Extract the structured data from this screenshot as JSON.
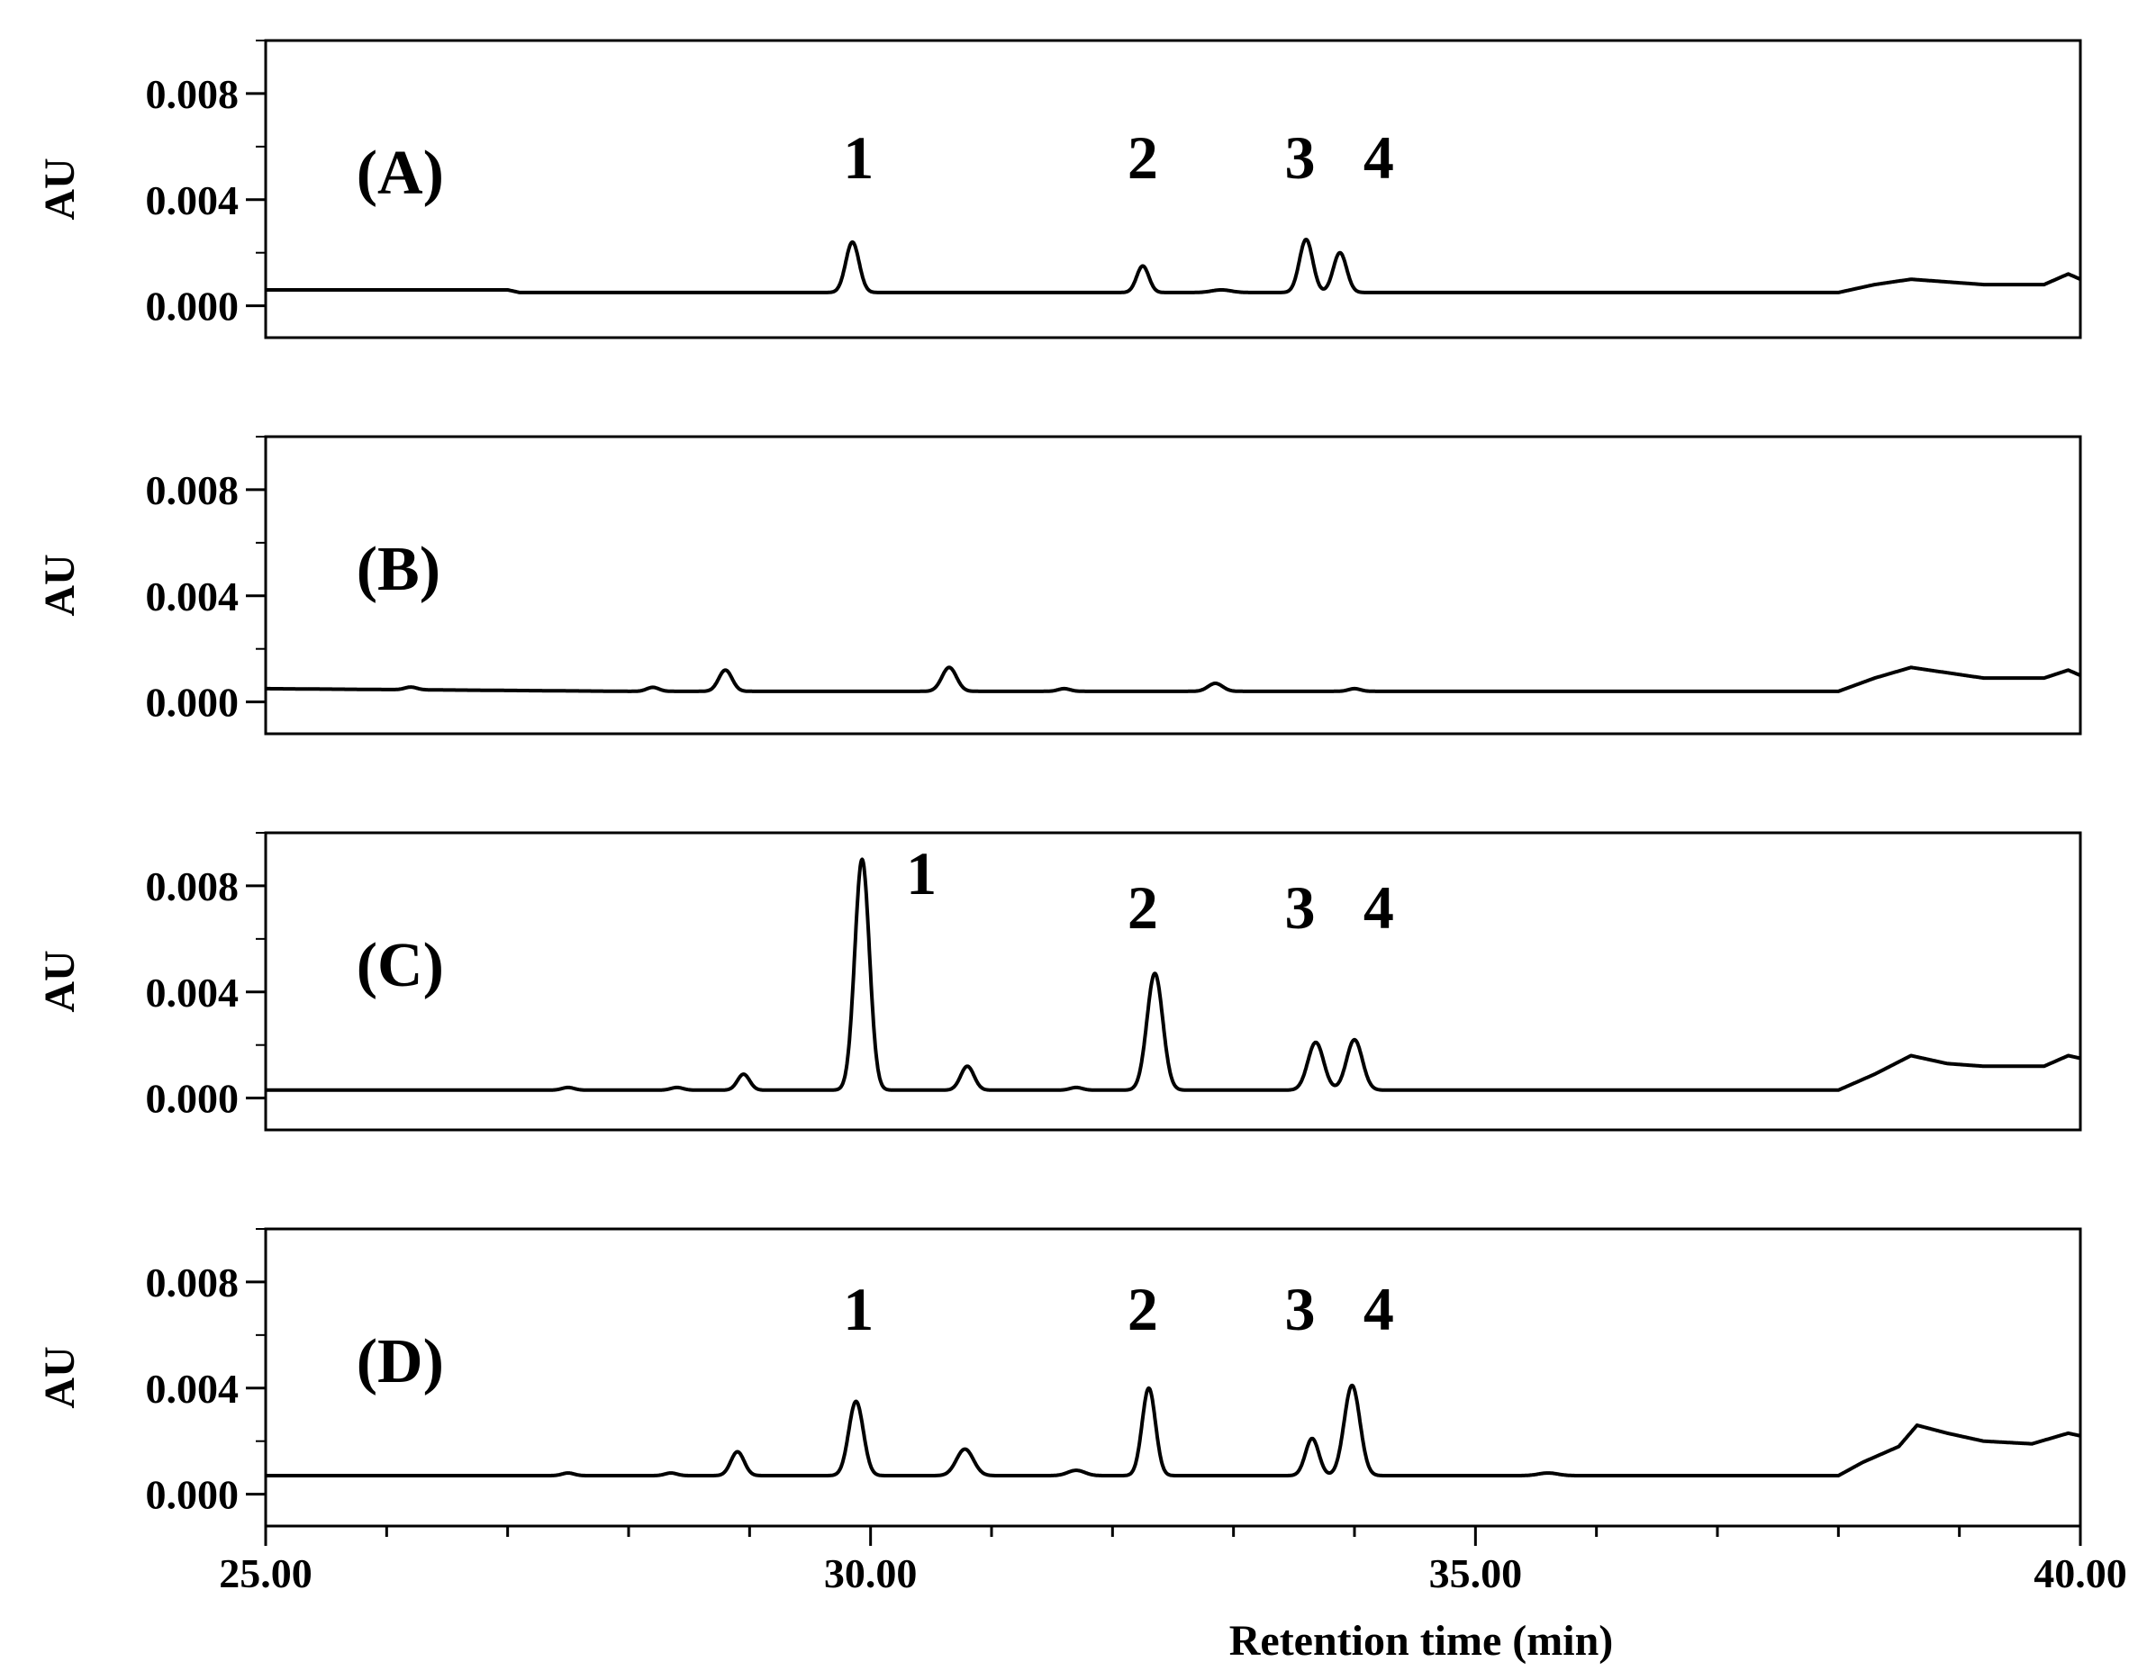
{
  "chart_data": {
    "type": "line",
    "xlabel": "Retention time (min)",
    "ylabel": "AU",
    "xlim": [
      25.0,
      40.0
    ],
    "ylim": [
      -0.0012,
      0.01
    ],
    "x_ticks": [
      25,
      30,
      35,
      40
    ],
    "x_tick_labels": [
      "25.00",
      "30.00",
      "35.00",
      "40.00"
    ],
    "y_ticks": [
      0.0,
      0.004,
      0.008
    ],
    "y_tick_labels": [
      "0.000",
      "0.004",
      "0.008"
    ],
    "grid": false,
    "legend": "none",
    "line_color": "#000000",
    "panels": [
      {
        "label": "(A)",
        "baseline": [
          [
            25,
            0.0006
          ],
          [
            27,
            0.0006
          ],
          [
            27.1,
            0.0005
          ],
          [
            38,
            0.0005
          ],
          [
            38.3,
            0.0008
          ],
          [
            38.6,
            0.001
          ],
          [
            38.9,
            0.0009
          ],
          [
            39.2,
            0.0008
          ],
          [
            39.7,
            0.0008
          ],
          [
            39.9,
            0.0012
          ],
          [
            40,
            0.001
          ]
        ],
        "peaks": [
          {
            "x": 29.85,
            "height": 0.0019,
            "width": 0.055
          },
          {
            "x": 32.25,
            "height": 0.001,
            "width": 0.05
          },
          {
            "x": 32.9,
            "height": 0.0001,
            "width": 0.08
          },
          {
            "x": 33.6,
            "height": 0.002,
            "width": 0.055
          },
          {
            "x": 33.88,
            "height": 0.0015,
            "width": 0.055
          }
        ],
        "peak_labels": [
          {
            "text": "1",
            "x": 29.9,
            "y": 0.0048
          },
          {
            "text": "2",
            "x": 32.25,
            "y": 0.0048
          },
          {
            "text": "3",
            "x": 33.55,
            "y": 0.0048
          },
          {
            "text": "4",
            "x": 34.2,
            "y": 0.0048
          }
        ]
      },
      {
        "label": "(B)",
        "baseline": [
          [
            25,
            0.0005
          ],
          [
            28,
            0.0004
          ],
          [
            38,
            0.0004
          ],
          [
            38.3,
            0.0009
          ],
          [
            38.6,
            0.0013
          ],
          [
            38.9,
            0.0011
          ],
          [
            39.2,
            0.0009
          ],
          [
            39.7,
            0.0009
          ],
          [
            39.9,
            0.0012
          ],
          [
            40,
            0.001
          ]
        ],
        "peaks": [
          {
            "x": 26.2,
            "height": 0.0001,
            "width": 0.05
          },
          {
            "x": 28.2,
            "height": 0.00015,
            "width": 0.05
          },
          {
            "x": 28.8,
            "height": 0.0008,
            "width": 0.055
          },
          {
            "x": 30.65,
            "height": 0.0009,
            "width": 0.06
          },
          {
            "x": 31.6,
            "height": 0.0001,
            "width": 0.05
          },
          {
            "x": 32.85,
            "height": 0.0003,
            "width": 0.06
          },
          {
            "x": 34.0,
            "height": 0.0001,
            "width": 0.05
          }
        ],
        "peak_labels": []
      },
      {
        "label": "(C)",
        "baseline": [
          [
            25,
            0.0003
          ],
          [
            38,
            0.0003
          ],
          [
            38.3,
            0.0009
          ],
          [
            38.6,
            0.0016
          ],
          [
            38.9,
            0.0013
          ],
          [
            39.2,
            0.0012
          ],
          [
            39.7,
            0.0012
          ],
          [
            39.9,
            0.0016
          ],
          [
            40,
            0.0015
          ]
        ],
        "peaks": [
          {
            "x": 27.5,
            "height": 0.0001,
            "width": 0.05
          },
          {
            "x": 28.4,
            "height": 0.0001,
            "width": 0.05
          },
          {
            "x": 28.95,
            "height": 0.0006,
            "width": 0.05
          },
          {
            "x": 29.93,
            "height": 0.0087,
            "width": 0.06
          },
          {
            "x": 30.8,
            "height": 0.0009,
            "width": 0.055
          },
          {
            "x": 31.7,
            "height": 0.0001,
            "width": 0.05
          },
          {
            "x": 32.35,
            "height": 0.0044,
            "width": 0.065
          },
          {
            "x": 33.68,
            "height": 0.0018,
            "width": 0.065
          },
          {
            "x": 34.0,
            "height": 0.0019,
            "width": 0.065
          }
        ],
        "peak_labels": [
          {
            "text": "1",
            "x": 30.42,
            "y": 0.0077
          },
          {
            "text": "2",
            "x": 32.25,
            "y": 0.0064
          },
          {
            "text": "3",
            "x": 33.55,
            "y": 0.0064
          },
          {
            "text": "4",
            "x": 34.2,
            "y": 0.0064
          }
        ]
      },
      {
        "label": "(D)",
        "baseline": [
          [
            25,
            0.0007
          ],
          [
            38,
            0.0007
          ],
          [
            38.2,
            0.0012
          ],
          [
            38.5,
            0.0018
          ],
          [
            38.65,
            0.0026
          ],
          [
            38.9,
            0.0023
          ],
          [
            39.2,
            0.002
          ],
          [
            39.6,
            0.0019
          ],
          [
            39.9,
            0.0023
          ],
          [
            40,
            0.0022
          ]
        ],
        "peaks": [
          {
            "x": 27.5,
            "height": 0.0001,
            "width": 0.05
          },
          {
            "x": 28.35,
            "height": 0.0001,
            "width": 0.05
          },
          {
            "x": 28.9,
            "height": 0.0009,
            "width": 0.055
          },
          {
            "x": 29.88,
            "height": 0.0028,
            "width": 0.06
          },
          {
            "x": 30.78,
            "height": 0.001,
            "width": 0.07
          },
          {
            "x": 31.7,
            "height": 0.0002,
            "width": 0.07
          },
          {
            "x": 32.3,
            "height": 0.0033,
            "width": 0.055
          },
          {
            "x": 33.65,
            "height": 0.0014,
            "width": 0.055
          },
          {
            "x": 33.98,
            "height": 0.0034,
            "width": 0.065
          },
          {
            "x": 35.6,
            "height": 0.0001,
            "width": 0.08
          }
        ],
        "peak_labels": [
          {
            "text": "1",
            "x": 29.9,
            "y": 0.0062
          },
          {
            "text": "2",
            "x": 32.25,
            "y": 0.0062
          },
          {
            "text": "3",
            "x": 33.55,
            "y": 0.0062
          },
          {
            "text": "4",
            "x": 34.2,
            "y": 0.0062
          }
        ]
      }
    ]
  }
}
